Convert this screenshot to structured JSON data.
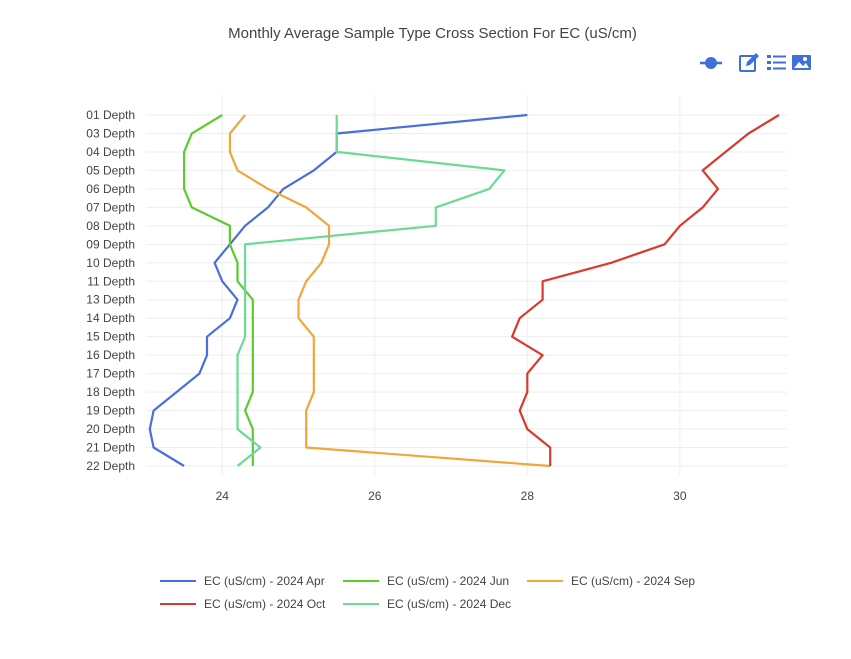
{
  "chart_data": {
    "type": "line",
    "title": "Monthly Average Sample Type Cross Section For EC (uS/cm)",
    "xlabel": "",
    "ylabel": "",
    "xlim": [
      23.0,
      31.3
    ],
    "x_ticks": [
      24,
      26,
      28,
      30
    ],
    "categories": [
      "01 Depth",
      "03 Depth",
      "04 Depth",
      "05 Depth",
      "06 Depth",
      "07 Depth",
      "08 Depth",
      "09 Depth",
      "10 Depth",
      "11 Depth",
      "13 Depth",
      "14 Depth",
      "15 Depth",
      "16 Depth",
      "17 Depth",
      "18 Depth",
      "19 Depth",
      "20 Depth",
      "21 Depth",
      "22 Depth"
    ],
    "y_reversed": true,
    "grid": true,
    "legend_position": "bottom",
    "series": [
      {
        "name": "EC (uS/cm) - 2024 Apr",
        "color": "#4a6ee0",
        "values": [
          28.0,
          25.5,
          25.5,
          25.2,
          24.8,
          24.6,
          24.3,
          24.1,
          23.9,
          24.0,
          24.2,
          24.1,
          23.8,
          23.8,
          23.7,
          23.4,
          23.1,
          23.05,
          23.1,
          23.5
        ]
      },
      {
        "name": "EC (uS/cm) - 2024 Jun",
        "color": "#5ccb2d",
        "values": [
          24.0,
          23.6,
          23.5,
          23.5,
          23.5,
          23.6,
          24.1,
          24.1,
          24.2,
          24.2,
          24.4,
          24.4,
          24.4,
          24.4,
          24.4,
          24.4,
          24.3,
          24.4,
          24.4,
          24.4
        ]
      },
      {
        "name": "EC (uS/cm) - 2024 Sep",
        "color": "#f0a63b",
        "values": [
          24.3,
          24.1,
          24.1,
          24.2,
          24.6,
          25.1,
          25.4,
          25.4,
          25.3,
          25.1,
          25.0,
          25.0,
          25.2,
          25.2,
          25.2,
          25.2,
          25.1,
          25.1,
          25.1,
          28.3
        ]
      },
      {
        "name": "EC (uS/cm) - 2024 Oct",
        "color": "#d93a2b",
        "values": [
          31.3,
          30.9,
          30.6,
          30.3,
          30.5,
          30.3,
          30.0,
          29.8,
          29.1,
          28.2,
          28.2,
          27.9,
          27.8,
          28.2,
          28.0,
          28.0,
          27.9,
          28.0,
          28.3,
          28.3
        ]
      },
      {
        "name": "EC (uS/cm) - 2024 Dec",
        "color": "#6bdb93",
        "values": [
          25.5,
          25.5,
          25.5,
          27.7,
          27.5,
          26.8,
          26.8,
          24.3,
          24.3,
          24.3,
          24.3,
          24.3,
          24.3,
          24.2,
          24.2,
          24.2,
          24.2,
          24.2,
          24.5,
          24.2
        ]
      }
    ]
  },
  "toolbar": {
    "icons": [
      "autoscale-icon",
      "edit-icon",
      "list-icon",
      "image-icon"
    ],
    "accent": "#3f6fd8"
  }
}
